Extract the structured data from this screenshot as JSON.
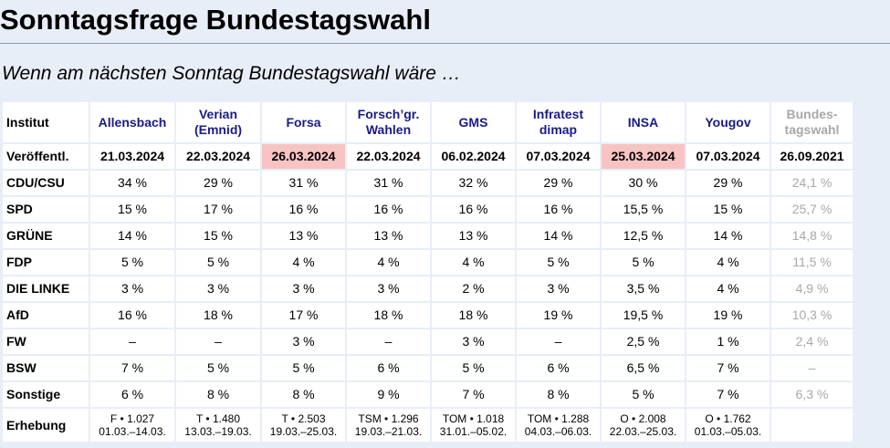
{
  "page": {
    "title": "Sonntagsfrage Bundestagswahl",
    "subtitle": "Wenn am nächsten Sonntag Bundestagswahl wäre …"
  },
  "table": {
    "corner_label": "Institut",
    "institutes": [
      {
        "line1": "Allensbach",
        "line2": ""
      },
      {
        "line1": "Verian",
        "line2": "(Emnid)"
      },
      {
        "line1": "Forsa",
        "line2": ""
      },
      {
        "line1": "Forsch’gr.",
        "line2": "Wahlen"
      },
      {
        "line1": "GMS",
        "line2": ""
      },
      {
        "line1": "Infratest",
        "line2": "dimap"
      },
      {
        "line1": "INSA",
        "line2": ""
      },
      {
        "line1": "Yougov",
        "line2": ""
      }
    ],
    "previous": {
      "line1": "Bundes-",
      "line2": "tagswahl"
    },
    "published_label": "Veröffentl.",
    "published": [
      "21.03.2024",
      "22.03.2024",
      "26.03.2024",
      "22.03.2024",
      "06.02.2024",
      "07.03.2024",
      "25.03.2024",
      "07.03.2024"
    ],
    "highlighted_dates": [
      2,
      6
    ],
    "highlight_color": "#f8c3c3",
    "previous_published": "26.09.2021",
    "parties": [
      {
        "name": "CDU/CSU",
        "values": [
          "34 %",
          "29 %",
          "31 %",
          "31 %",
          "32 %",
          "29 %",
          "30 %",
          "29 %"
        ],
        "previous": "24,1 %"
      },
      {
        "name": "SPD",
        "values": [
          "15 %",
          "17 %",
          "16 %",
          "16 %",
          "16 %",
          "16 %",
          "15,5 %",
          "15 %"
        ],
        "previous": "25,7 %"
      },
      {
        "name": "GRÜNE",
        "values": [
          "14 %",
          "15 %",
          "13 %",
          "13 %",
          "13 %",
          "14 %",
          "12,5 %",
          "14 %"
        ],
        "previous": "14,8 %"
      },
      {
        "name": "FDP",
        "values": [
          "5 %",
          "5 %",
          "4 %",
          "4 %",
          "4 %",
          "5 %",
          "5 %",
          "4 %"
        ],
        "previous": "11,5 %"
      },
      {
        "name": "DIE LINKE",
        "values": [
          "3 %",
          "3 %",
          "3 %",
          "3 %",
          "2 %",
          "3 %",
          "3,5 %",
          "4 %"
        ],
        "previous": "4,9 %"
      },
      {
        "name": "AfD",
        "values": [
          "16 %",
          "18 %",
          "17 %",
          "18 %",
          "18 %",
          "19 %",
          "19,5 %",
          "19 %"
        ],
        "previous": "10,3 %"
      },
      {
        "name": "FW",
        "values": [
          "–",
          "–",
          "3 %",
          "–",
          "3 %",
          "–",
          "2,5 %",
          "1 %"
        ],
        "previous": "2,4 %"
      },
      {
        "name": "BSW",
        "values": [
          "7 %",
          "5 %",
          "5 %",
          "6 %",
          "5 %",
          "6 %",
          "6,5 %",
          "7 %"
        ],
        "previous": "–"
      },
      {
        "name": "Sonstige",
        "values": [
          "6 %",
          "8 %",
          "8 %",
          "9 %",
          "7 %",
          "8 %",
          "5 %",
          "7 %"
        ],
        "previous": "6,3 %"
      }
    ],
    "survey_label": "Erhebung",
    "surveys": [
      {
        "sample": "F • 1.027",
        "period": "01.03.–14.03."
      },
      {
        "sample": "T • 1.480",
        "period": "13.03.–19.03."
      },
      {
        "sample": "T • 2.503",
        "period": "19.03.–25.03."
      },
      {
        "sample": "TSM • 1.296",
        "period": "19.03.–21.03."
      },
      {
        "sample": "TOM • 1.018",
        "period": "31.01.–05.02."
      },
      {
        "sample": "TOM • 1.288",
        "period": "04.03.–06.03."
      },
      {
        "sample": "O • 2.008",
        "period": "22.03.–25.03."
      },
      {
        "sample": "O • 1.762",
        "period": "01.03.–05.03."
      }
    ]
  }
}
